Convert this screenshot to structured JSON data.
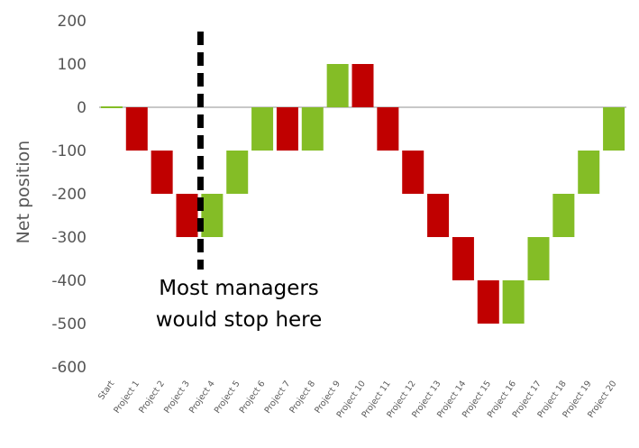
{
  "chart_data": {
    "type": "bar",
    "subtype": "waterfall",
    "title": "",
    "xlabel": "",
    "ylabel": "Net position",
    "ylim": [
      -600,
      200
    ],
    "yticks": [
      200,
      100,
      0,
      -100,
      -200,
      -300,
      -400,
      -500,
      -600
    ],
    "grid": false,
    "legend": "none",
    "categories": [
      "Start",
      "Project 1",
      "Project 2",
      "Project 3",
      "Project 4",
      "Project 5",
      "Project 6",
      "Project 7",
      "Project 8",
      "Project 9",
      "Project 10",
      "Project 11",
      "Project 12",
      "Project 13",
      "Project 14",
      "Project 15",
      "Project 16",
      "Project 17",
      "Project 18",
      "Project 19",
      "Project 20"
    ],
    "changes": [
      0,
      -100,
      -100,
      -100,
      100,
      100,
      100,
      -100,
      100,
      100,
      -100,
      -100,
      -100,
      -100,
      -100,
      -100,
      100,
      100,
      100,
      100,
      100
    ],
    "bars": [
      {
        "category": "Start",
        "from": 0,
        "to": 0
      },
      {
        "category": "Project 1",
        "from": 0,
        "to": -100
      },
      {
        "category": "Project 2",
        "from": -100,
        "to": -200
      },
      {
        "category": "Project 3",
        "from": -200,
        "to": -300
      },
      {
        "category": "Project 4",
        "from": -300,
        "to": -200
      },
      {
        "category": "Project 5",
        "from": -200,
        "to": -100
      },
      {
        "category": "Project 6",
        "from": -100,
        "to": 0
      },
      {
        "category": "Project 7",
        "from": 0,
        "to": -100
      },
      {
        "category": "Project 8",
        "from": -100,
        "to": 0
      },
      {
        "category": "Project 9",
        "from": 0,
        "to": 100
      },
      {
        "category": "Project 10",
        "from": 100,
        "to": 0
      },
      {
        "category": "Project 11",
        "from": 0,
        "to": -100
      },
      {
        "category": "Project 12",
        "from": -100,
        "to": -200
      },
      {
        "category": "Project 13",
        "from": -200,
        "to": -300
      },
      {
        "category": "Project 14",
        "from": -300,
        "to": -400
      },
      {
        "category": "Project 15",
        "from": -400,
        "to": -500
      },
      {
        "category": "Project 16",
        "from": -500,
        "to": -400
      },
      {
        "category": "Project 17",
        "from": -400,
        "to": -300
      },
      {
        "category": "Project 18",
        "from": -300,
        "to": -200
      },
      {
        "category": "Project 19",
        "from": -200,
        "to": -100
      },
      {
        "category": "Project 20",
        "from": -100,
        "to": 0
      }
    ],
    "colors": {
      "increase": "#84BD26",
      "decrease": "#C00000",
      "start": "#84BD26",
      "zero_line": "#A6A6A6",
      "marker_line": "#000000"
    },
    "annotation": {
      "text_lines": [
        "Most managers",
        "would stop here"
      ],
      "marker_category": "Project 4",
      "marker_y_range": [
        -375,
        175
      ],
      "marker_style": "dashed"
    }
  }
}
